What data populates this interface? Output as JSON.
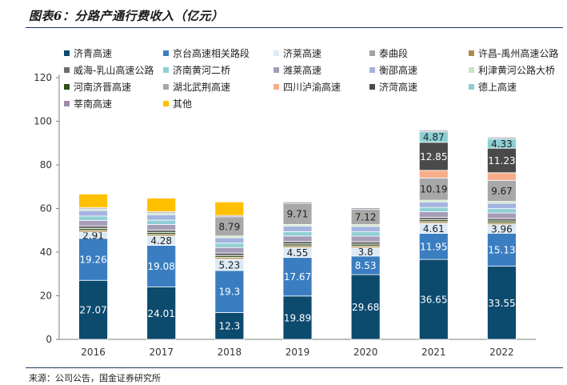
{
  "title": "图表6：分路产通行费收入（亿元）",
  "source": "来源：公司公告，国金证券研究所",
  "chart_data": {
    "type": "bar",
    "stacked": true,
    "categories": [
      "2016",
      "2017",
      "2018",
      "2019",
      "2020",
      "2021",
      "2022"
    ],
    "ylim": [
      0,
      120
    ],
    "yticks": [
      0,
      20,
      40,
      60,
      80,
      100,
      120
    ],
    "xlabel": "",
    "ylabel": "",
    "grid": false,
    "legend_position": "top",
    "series": [
      {
        "name": "济青高速",
        "color": "#0c4a6e",
        "values": [
          27.07,
          24.01,
          12.3,
          19.89,
          29.68,
          36.65,
          33.55
        ],
        "labels": [
          "27.07",
          "24.01",
          "12.3",
          "19.89",
          "29.68",
          "36.65",
          "33.55"
        ]
      },
      {
        "name": "京台高速相关路段",
        "color": "#3a7ec1",
        "values": [
          19.26,
          19.08,
          19.3,
          17.67,
          8.53,
          11.95,
          15.13
        ],
        "labels": [
          "19.26",
          "19.08",
          "19.3",
          "17.67",
          "8.53",
          "11.95",
          "15.13"
        ]
      },
      {
        "name": "济莱高速",
        "color": "#dceaf5",
        "values": [
          2.91,
          4.28,
          5.23,
          4.55,
          3.8,
          4.61,
          3.96
        ],
        "labels": [
          "2.91",
          "4.28",
          "5.23",
          "4.55",
          "3.8",
          "4.61",
          "3.96"
        ]
      },
      {
        "name": "许昌-禹州高速公路",
        "color": "#b08a4e",
        "values": [
          0.8,
          0.8,
          0.8,
          0.8,
          0.8,
          0.8,
          0.8
        ]
      },
      {
        "name": "河南济晋高速",
        "color": "#2d5016",
        "values": [
          0.8,
          0.8,
          0.8,
          0.8,
          0.8,
          0.8,
          0.8
        ]
      },
      {
        "name": "威海-乳山高速公路",
        "color": "#6d6d6d",
        "values": [
          1.2,
          1.2,
          1.2,
          1.2,
          1.2,
          1.2,
          1.2
        ]
      },
      {
        "name": "潍莱高速",
        "color": "#a59cb8",
        "values": [
          2.5,
          2.5,
          2.5,
          2.5,
          2.5,
          2.5,
          2.5
        ]
      },
      {
        "name": "济南黄河二桥",
        "color": "#8fcfd5",
        "values": [
          2.0,
          2.0,
          2.0,
          2.0,
          2.0,
          2.0,
          2.0
        ]
      },
      {
        "name": "衡邵高速",
        "color": "#a4b4e0",
        "values": [
          2.5,
          2.5,
          2.5,
          2.5,
          2.5,
          2.5,
          2.5
        ]
      },
      {
        "name": "利津黄河公路大桥",
        "color": "#c7e4c0",
        "values": [
          0.8,
          0.8,
          0.8,
          0.8,
          0.8,
          0.8,
          0.8
        ]
      },
      {
        "name": "湖北武荆高速",
        "color": "#a8a8a8",
        "values": [
          0,
          0,
          8.79,
          9.71,
          7.12,
          10.19,
          9.67
        ],
        "labels": [
          "",
          "",
          "8.79",
          "9.71",
          "7.12",
          "10.19",
          "9.67"
        ]
      },
      {
        "name": "四川泸渝高速",
        "color": "#f8ad8a",
        "values": [
          0,
          0,
          0,
          0,
          0,
          3.5,
          3.5
        ]
      },
      {
        "name": "济菏高速",
        "color": "#4a4a4a",
        "values": [
          0,
          0,
          0,
          0,
          0,
          12.85,
          11.23
        ],
        "labels": [
          "",
          "",
          "",
          "",
          "",
          "12.85",
          "11.23"
        ]
      },
      {
        "name": "德上高速",
        "color": "#8ccfd3",
        "values": [
          0,
          0,
          0,
          0,
          0,
          4.87,
          4.33
        ],
        "labels": [
          "",
          "",
          "",
          "",
          "",
          "4.87",
          "4.33"
        ]
      },
      {
        "name": "莘南高速",
        "color": "#9e8ba8",
        "values": [
          0.6,
          0.6,
          0.6,
          0.6,
          0.6,
          0.6,
          0.6
        ]
      },
      {
        "name": "其他",
        "color": "#ffc000",
        "values": [
          6.2,
          6.2,
          6.2,
          0,
          0,
          0,
          0
        ]
      }
    ]
  },
  "legend_order": [
    "济青高速",
    "京台高速相关路段",
    "济莱高速",
    "泰曲段",
    "许昌-禹州高速公路",
    "威海-乳山高速公路",
    "济南黄河二桥",
    "潍莱高速",
    "衡邵高速",
    "利津黄河公路大桥",
    "河南济晋高速",
    "湖北武荆高速",
    "四川泸渝高速",
    "济菏高速",
    "德上高速",
    "莘南高速",
    "其他"
  ],
  "legend_extra": {
    "泰曲段": "#a3a3a3"
  }
}
